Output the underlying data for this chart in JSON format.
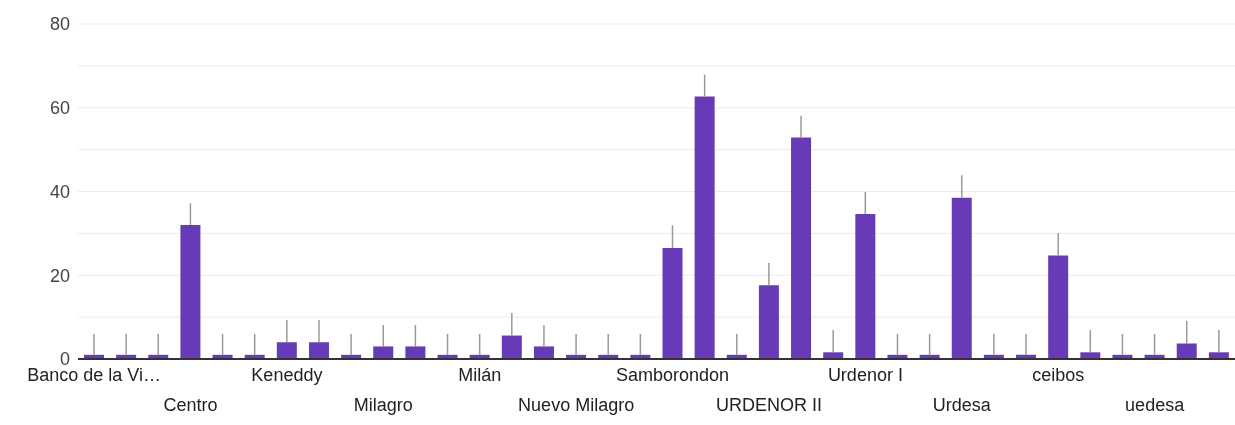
{
  "chart_data": {
    "type": "bar",
    "categories": [
      "Banco de la Vi…",
      null,
      null,
      "Centro",
      null,
      null,
      "Keneddy",
      null,
      null,
      "Milagro",
      null,
      null,
      "Milán",
      null,
      null,
      "Nuevo Milagro",
      null,
      null,
      "Samborondon",
      null,
      null,
      "URDENOR II",
      null,
      null,
      "Urdenor I",
      null,
      null,
      "Urdesa",
      null,
      null,
      "ceibos",
      null,
      null,
      "uedesa",
      null,
      null
    ],
    "values": [
      1,
      1,
      1,
      32,
      1,
      1,
      4,
      4,
      1,
      3,
      3,
      1,
      1,
      5.6,
      3,
      1,
      1,
      1,
      26.5,
      62.7,
      1,
      17.6,
      52.9,
      1.6,
      34.6,
      1,
      1,
      38.5,
      1,
      1,
      24.7,
      1.6,
      1,
      1,
      3.7,
      1.6
    ],
    "errors": [
      [
        1,
        6
      ],
      [
        1,
        6
      ],
      [
        1,
        6
      ],
      [
        32,
        37.2
      ],
      [
        1,
        6
      ],
      [
        1,
        6
      ],
      [
        4,
        9.3
      ],
      [
        4,
        9.3
      ],
      [
        1,
        6
      ],
      [
        3,
        8.1
      ],
      [
        3,
        8.1
      ],
      [
        1,
        6
      ],
      [
        1,
        6
      ],
      [
        5.6,
        11
      ],
      [
        3,
        8.1
      ],
      [
        1,
        6
      ],
      [
        1,
        6
      ],
      [
        1,
        6
      ],
      [
        26.5,
        31.9
      ],
      [
        62.7,
        67.9
      ],
      [
        1,
        6
      ],
      [
        17.6,
        22.9
      ],
      [
        52.9,
        58.1
      ],
      [
        1.6,
        6.9
      ],
      [
        34.6,
        39.9
      ],
      [
        1,
        6
      ],
      [
        1,
        6
      ],
      [
        38.5,
        43.9
      ],
      [
        1,
        6
      ],
      [
        1,
        6
      ],
      [
        24.7,
        30.1
      ],
      [
        1.6,
        6.9
      ],
      [
        1,
        6
      ],
      [
        1,
        6
      ],
      [
        3.7,
        9.1
      ],
      [
        1.6,
        6.9
      ]
    ],
    "color": "#673ab7",
    "ylim": [
      0,
      80
    ],
    "yticks": [
      0,
      {
        "value": 10,
        "label": null
      },
      20,
      {
        "value": 30,
        "label": null
      },
      40,
      {
        "value": 50,
        "label": null
      },
      60,
      {
        "value": 70,
        "label": null
      },
      80
    ],
    "grid": "y"
  }
}
